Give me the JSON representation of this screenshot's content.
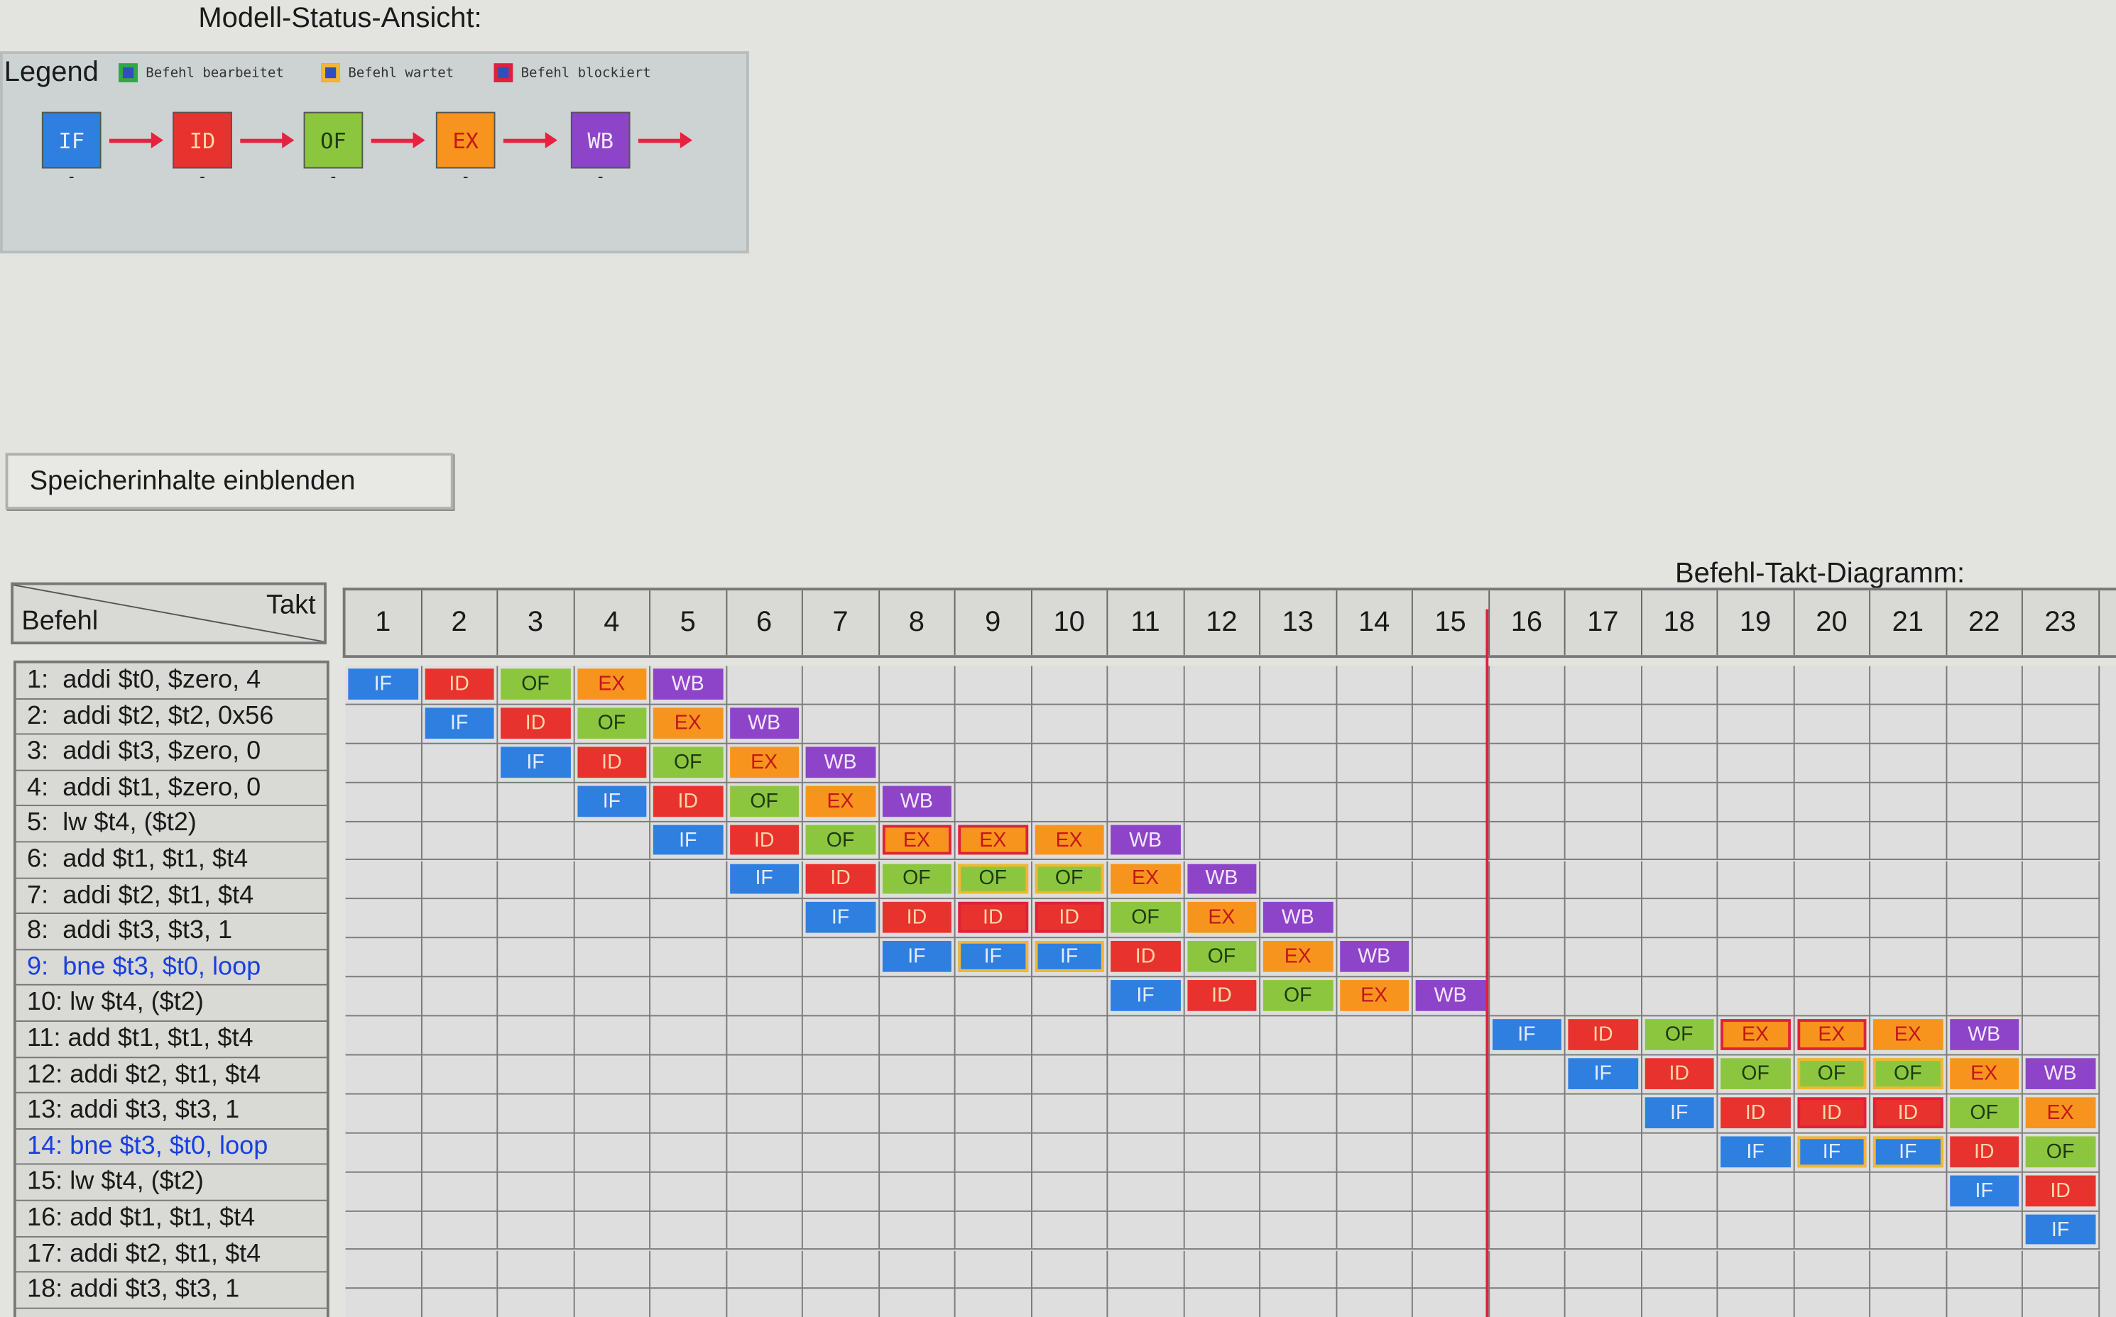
{
  "header": {
    "title": "Modell-Status-Ansicht:"
  },
  "legend": {
    "title": "Legend",
    "items": [
      {
        "label": "Befehl bearbeitet",
        "color": "#2ea84a"
      },
      {
        "label": "Befehl wartet",
        "color": "#f2b632"
      },
      {
        "label": "Befehl blockiert",
        "color": "#e0213a"
      }
    ]
  },
  "pipeline": [
    {
      "label": "IF",
      "color": "#2f7fe0",
      "text_color": "#e4ecff",
      "note": "-"
    },
    {
      "label": "ID",
      "color": "#e8322e",
      "text_color": "#ffd7a8",
      "note": "-"
    },
    {
      "label": "OF",
      "color": "#8cc63f",
      "text_color": "#1d3a10",
      "note": "-"
    },
    {
      "label": "EX",
      "color": "#f7941d",
      "text_color": "#c4161c",
      "note": "-"
    },
    {
      "label": "WB",
      "color": "#8e44c8",
      "text_color": "#f2e8ff",
      "note": "-"
    }
  ],
  "button": {
    "label": "Speicherinhalte einblenden"
  },
  "diagram": {
    "title": "Befehl-Takt-Diagramm:",
    "row_header": "Befehl",
    "column_header": "Takt",
    "cycles": [
      1,
      2,
      3,
      4,
      5,
      6,
      7,
      8,
      9,
      10,
      11,
      12,
      13,
      14,
      15,
      16,
      17,
      18,
      19,
      20,
      21,
      22,
      23
    ],
    "rows": [
      {
        "instruction": "1:  addi $t0, $zero, 4",
        "highlight": false,
        "cells": [
          "IF",
          "ID",
          "OF",
          "EX",
          "WB",
          null,
          null,
          null,
          null,
          null,
          null,
          null,
          null,
          null,
          null,
          null,
          null,
          null,
          null,
          null,
          null,
          null,
          null
        ]
      },
      {
        "instruction": "2:  addi $t2, $t2, 0x56",
        "highlight": false,
        "cells": [
          null,
          "IF",
          "ID",
          "OF",
          "EX",
          "WB",
          null,
          null,
          null,
          null,
          null,
          null,
          null,
          null,
          null,
          null,
          null,
          null,
          null,
          null,
          null,
          null,
          null
        ]
      },
      {
        "instruction": "3:  addi $t3, $zero, 0",
        "highlight": false,
        "cells": [
          null,
          null,
          "IF",
          "ID",
          "OF",
          "EX",
          "WB",
          null,
          null,
          null,
          null,
          null,
          null,
          null,
          null,
          null,
          null,
          null,
          null,
          null,
          null,
          null,
          null
        ]
      },
      {
        "instruction": "4:  addi $t1, $zero, 0",
        "highlight": false,
        "cells": [
          null,
          null,
          null,
          "IF",
          "ID",
          "OF",
          "EX",
          "WB",
          null,
          null,
          null,
          null,
          null,
          null,
          null,
          null,
          null,
          null,
          null,
          null,
          null,
          null,
          null
        ]
      },
      {
        "instruction": "5:  lw $t4, ($t2)",
        "highlight": false,
        "cells": [
          null,
          null,
          null,
          null,
          "IF",
          "ID",
          "OF",
          {
            "text": "EX",
            "state": "blocked"
          },
          {
            "text": "EX",
            "state": "blocked"
          },
          "EX",
          "WB",
          null,
          null,
          null,
          null,
          null,
          null,
          null,
          null,
          null,
          null,
          null,
          null
        ]
      },
      {
        "instruction": "6:  add $t1, $t1, $t4",
        "highlight": false,
        "cells": [
          null,
          null,
          null,
          null,
          null,
          "IF",
          "ID",
          "OF",
          {
            "text": "OF",
            "state": "waiting"
          },
          {
            "text": "OF",
            "state": "waiting"
          },
          "EX",
          "WB",
          null,
          null,
          null,
          null,
          null,
          null,
          null,
          null,
          null,
          null,
          null
        ]
      },
      {
        "instruction": "7:  addi $t2, $t1, $t4",
        "highlight": false,
        "cells": [
          null,
          null,
          null,
          null,
          null,
          null,
          "IF",
          "ID",
          {
            "text": "ID",
            "state": "blocked"
          },
          {
            "text": "ID",
            "state": "blocked"
          },
          "OF",
          "EX",
          "WB",
          null,
          null,
          null,
          null,
          null,
          null,
          null,
          null,
          null,
          null
        ]
      },
      {
        "instruction": "8:  addi $t3, $t3, 1",
        "highlight": false,
        "cells": [
          null,
          null,
          null,
          null,
          null,
          null,
          null,
          "IF",
          {
            "text": "IF",
            "state": "waiting"
          },
          {
            "text": "IF",
            "state": "waiting"
          },
          "ID",
          "OF",
          "EX",
          "WB",
          null,
          null,
          null,
          null,
          null,
          null,
          null,
          null,
          null
        ]
      },
      {
        "instruction": "9:  bne $t3, $t0, loop",
        "highlight": true,
        "cells": [
          null,
          null,
          null,
          null,
          null,
          null,
          null,
          null,
          null,
          null,
          "IF",
          "ID",
          "OF",
          "EX",
          "WB",
          null,
          null,
          null,
          null,
          null,
          null,
          null,
          null
        ]
      },
      {
        "instruction": "10: lw $t4, ($t2)",
        "highlight": false,
        "cells": [
          null,
          null,
          null,
          null,
          null,
          null,
          null,
          null,
          null,
          null,
          null,
          null,
          null,
          null,
          null,
          "IF",
          "ID",
          "OF",
          {
            "text": "EX",
            "state": "blocked"
          },
          {
            "text": "EX",
            "state": "blocked"
          },
          "EX",
          "WB",
          null
        ]
      },
      {
        "instruction": "11: add $t1, $t1, $t4",
        "highlight": false,
        "cells": [
          null,
          null,
          null,
          null,
          null,
          null,
          null,
          null,
          null,
          null,
          null,
          null,
          null,
          null,
          null,
          null,
          "IF",
          "ID",
          "OF",
          {
            "text": "OF",
            "state": "waiting"
          },
          {
            "text": "OF",
            "state": "waiting"
          },
          "EX",
          "WB"
        ]
      },
      {
        "instruction": "12: addi $t2, $t1, $t4",
        "highlight": false,
        "cells": [
          null,
          null,
          null,
          null,
          null,
          null,
          null,
          null,
          null,
          null,
          null,
          null,
          null,
          null,
          null,
          null,
          null,
          "IF",
          "ID",
          {
            "text": "ID",
            "state": "blocked"
          },
          {
            "text": "ID",
            "state": "blocked"
          },
          "OF",
          "EX"
        ]
      },
      {
        "instruction": "13: addi $t3, $t3, 1",
        "highlight": false,
        "cells": [
          null,
          null,
          null,
          null,
          null,
          null,
          null,
          null,
          null,
          null,
          null,
          null,
          null,
          null,
          null,
          null,
          null,
          null,
          "IF",
          {
            "text": "IF",
            "state": "waiting"
          },
          {
            "text": "IF",
            "state": "waiting"
          },
          "ID",
          "OF"
        ]
      },
      {
        "instruction": "14: bne $t3, $t0, loop",
        "highlight": true,
        "cells": [
          null,
          null,
          null,
          null,
          null,
          null,
          null,
          null,
          null,
          null,
          null,
          null,
          null,
          null,
          null,
          null,
          null,
          null,
          null,
          null,
          null,
          "IF",
          "ID"
        ]
      },
      {
        "instruction": "15: lw $t4, ($t2)",
        "highlight": false,
        "cells": [
          null,
          null,
          null,
          null,
          null,
          null,
          null,
          null,
          null,
          null,
          null,
          null,
          null,
          null,
          null,
          null,
          null,
          null,
          null,
          null,
          null,
          null,
          "IF"
        ]
      },
      {
        "instruction": "16: add $t1, $t1, $t4",
        "highlight": false,
        "cells": [
          null,
          null,
          null,
          null,
          null,
          null,
          null,
          null,
          null,
          null,
          null,
          null,
          null,
          null,
          null,
          null,
          null,
          null,
          null,
          null,
          null,
          null,
          null
        ]
      },
      {
        "instruction": "17: addi $t2, $t1, $t4",
        "highlight": false,
        "cells": [
          null,
          null,
          null,
          null,
          null,
          null,
          null,
          null,
          null,
          null,
          null,
          null,
          null,
          null,
          null,
          null,
          null,
          null,
          null,
          null,
          null,
          null,
          null
        ]
      },
      {
        "instruction": "18: addi $t3, $t3, 1",
        "highlight": false,
        "cells": [
          null,
          null,
          null,
          null,
          null,
          null,
          null,
          null,
          null,
          null,
          null,
          null,
          null,
          null,
          null,
          null,
          null,
          null,
          null,
          null,
          null,
          null,
          null
        ]
      }
    ]
  }
}
